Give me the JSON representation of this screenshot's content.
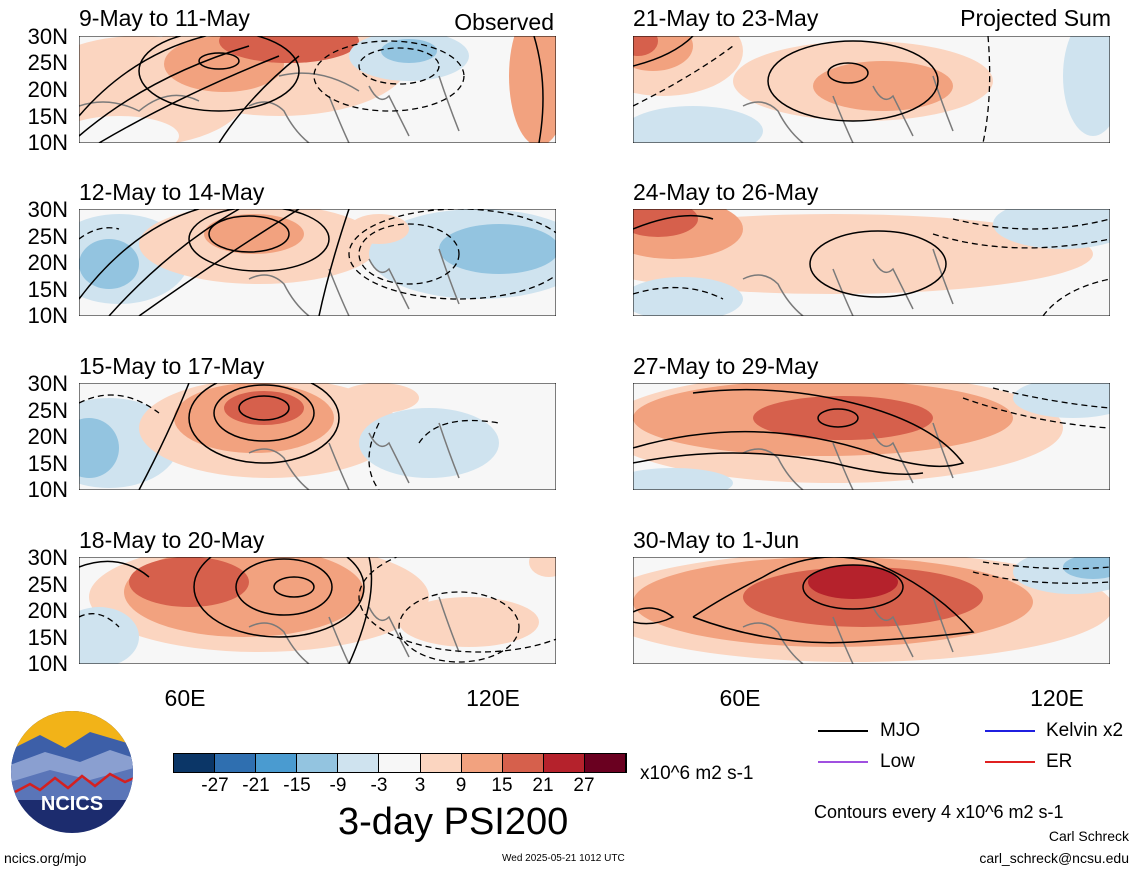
{
  "panels_observed_tag": "Observed",
  "panels_projected_tag": "Projected Sum",
  "left_panels": [
    {
      "title": "9-May to 11-May"
    },
    {
      "title": "12-May to 14-May"
    },
    {
      "title": "15-May to 17-May"
    },
    {
      "title": "18-May to 20-May"
    }
  ],
  "right_panels": [
    {
      "title": "21-May to 23-May"
    },
    {
      "title": "24-May to 26-May"
    },
    {
      "title": "27-May to 29-May"
    },
    {
      "title": "30-May to 1-Jun"
    }
  ],
  "y_ticks": [
    "30N",
    "25N",
    "20N",
    "15N",
    "10N"
  ],
  "x_ticks": [
    "60E",
    "120E"
  ],
  "colorbar": {
    "colors": [
      "#0b3667",
      "#2f6fb0",
      "#4a9bd0",
      "#93c4e0",
      "#cfe3ef",
      "#f7f7f7",
      "#fbd5c0",
      "#f2a27f",
      "#d6604c",
      "#b5222c",
      "#6a0020"
    ],
    "labels": [
      "-27",
      "-21",
      "-15",
      "-9",
      "-3",
      "3",
      "9",
      "15",
      "21",
      "27"
    ],
    "units": "x10^6 m2 s-1",
    "title": "3-day PSI200"
  },
  "legend": {
    "items": [
      {
        "label": "MJO",
        "color": "#000000"
      },
      {
        "label": "Kelvin x2",
        "color": "#1f1fe0"
      },
      {
        "label": "Low",
        "color": "#a050e0"
      },
      {
        "label": "ER",
        "color": "#e02020"
      }
    ],
    "contours_note": "Contours every 4 x10^6 m2 s-1"
  },
  "logo_text": "NCICS",
  "footer": {
    "url": "ncics.org/mjo",
    "timestamp": "Wed 2025-05-21 1012 UTC",
    "author": "Carl Schreck",
    "email": "carl_schreck@ncsu.edu"
  }
}
